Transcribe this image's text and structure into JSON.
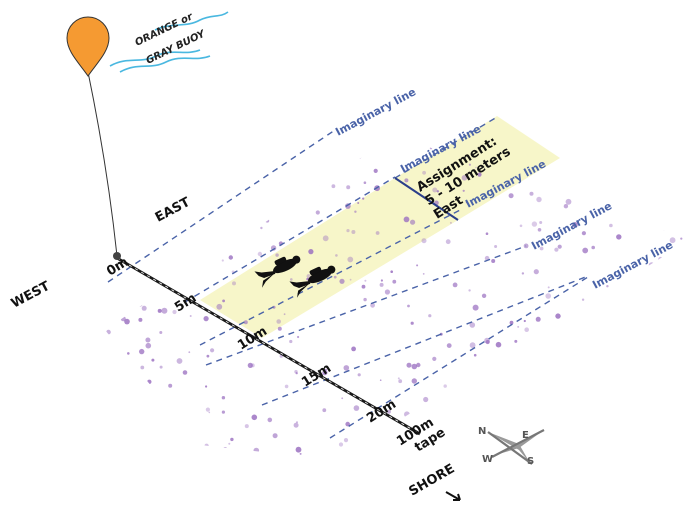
{
  "buoy": {
    "label_line1": "ORANGE or",
    "label_line2": "GRAY BUOY",
    "color": "#f59a32"
  },
  "directions": {
    "east": "EAST",
    "west": "WEST",
    "shore": "SHORE"
  },
  "imaginary_line_label": "Imaginary line",
  "assignment": {
    "line1": "Assignment:",
    "line2": "5 - 10 meters",
    "line3": "East"
  },
  "tape": {
    "marks": [
      "0m",
      "5m",
      "10m",
      "15m",
      "20m",
      "100m"
    ],
    "end_label": "tape"
  },
  "compass": {
    "n": "N",
    "e": "E",
    "s": "S",
    "w": "W"
  },
  "colors": {
    "dash": "#4a63a8",
    "label": "#4a63a8",
    "highlight": "#f7f6c9",
    "dots": "#9a6fc0",
    "water": "#4ab8e0",
    "boundary": "#2b3f8a"
  }
}
